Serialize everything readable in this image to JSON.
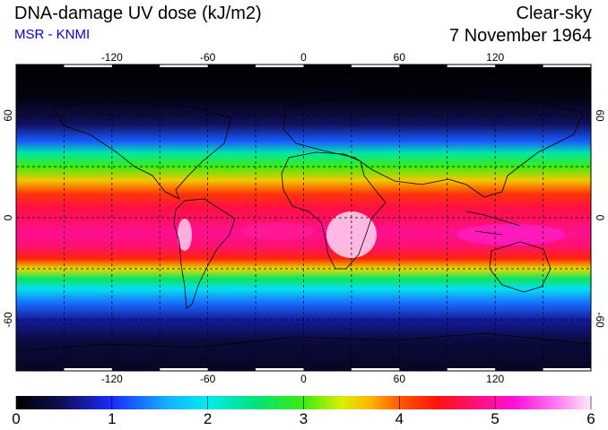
{
  "header": {
    "title": "DNA-damage UV dose (kJ/m2)",
    "subtitle": "MSR - KNMI",
    "mode": "Clear-sky",
    "date": "7 November 1964"
  },
  "colors": {
    "subtitle": "#0000ee",
    "background": "#ffffff",
    "grid_line": "#000000"
  },
  "map": {
    "projection": "equirectangular",
    "lon_range": [
      -180,
      180
    ],
    "lat_range": [
      -90,
      90
    ],
    "lon_ticks": [
      "-120",
      "-60",
      "0",
      "60",
      "120"
    ],
    "lat_ticks": [
      "60",
      "0",
      "-60"
    ],
    "grid": "dashed, every 30 degrees"
  },
  "colorbar": {
    "min": 0,
    "max": 6,
    "labels": [
      "0",
      "1",
      "2",
      "3",
      "4",
      "5",
      "6"
    ],
    "gradient_stops": [
      {
        "value": 0.0,
        "color": "#000000"
      },
      {
        "value": 0.5,
        "color": "#10105a"
      },
      {
        "value": 1.0,
        "color": "#1a2cff"
      },
      {
        "value": 1.6,
        "color": "#16b4ff"
      },
      {
        "value": 2.0,
        "color": "#00ecec"
      },
      {
        "value": 2.5,
        "color": "#00e27a"
      },
      {
        "value": 3.0,
        "color": "#3cec10"
      },
      {
        "value": 3.4,
        "color": "#d8f000"
      },
      {
        "value": 3.7,
        "color": "#ffb400"
      },
      {
        "value": 4.0,
        "color": "#ff5a00"
      },
      {
        "value": 4.4,
        "color": "#ff1010"
      },
      {
        "value": 4.8,
        "color": "#ff1078"
      },
      {
        "value": 5.2,
        "color": "#ff10d8"
      },
      {
        "value": 5.6,
        "color": "#ff70ee"
      },
      {
        "value": 6.0,
        "color": "#ffe8fb"
      }
    ]
  }
}
